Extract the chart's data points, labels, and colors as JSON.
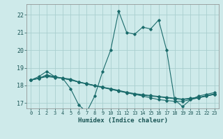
{
  "xlabel": "Humidex (Indice chaleur)",
  "ylabel": "",
  "bg_color": "#ceeaea",
  "grid_color": "#aacfcf",
  "line_color": "#1a6b6b",
  "xlim": [
    -0.5,
    23.5
  ],
  "ylim": [
    16.7,
    22.6
  ],
  "yticks": [
    17,
    18,
    19,
    20,
    21,
    22
  ],
  "xticks": [
    0,
    1,
    2,
    3,
    4,
    5,
    6,
    7,
    8,
    9,
    10,
    11,
    12,
    13,
    14,
    15,
    16,
    17,
    18,
    19,
    20,
    21,
    22,
    23
  ],
  "series": [
    {
      "x": [
        0,
        1,
        2,
        3,
        4,
        5,
        6,
        7,
        8,
        9,
        10,
        11,
        12,
        13,
        14,
        15,
        16,
        17,
        18,
        19,
        20,
        21,
        22,
        23
      ],
      "y": [
        18.3,
        18.5,
        18.8,
        18.5,
        18.4,
        17.8,
        16.9,
        16.5,
        17.4,
        18.8,
        20.0,
        22.2,
        21.0,
        20.9,
        21.3,
        21.2,
        21.7,
        20.0,
        17.2,
        16.8,
        17.2,
        17.4,
        17.5,
        17.6
      ]
    },
    {
      "x": [
        0,
        1,
        2,
        3,
        4,
        5,
        6,
        7,
        8,
        9,
        10,
        11,
        12,
        13,
        14,
        15,
        16,
        17,
        18,
        19,
        20,
        21,
        22,
        23
      ],
      "y": [
        18.3,
        18.4,
        18.6,
        18.5,
        18.4,
        18.3,
        18.2,
        18.1,
        18.0,
        17.9,
        17.8,
        17.7,
        17.6,
        17.5,
        17.4,
        17.3,
        17.2,
        17.15,
        17.1,
        17.1,
        17.2,
        17.3,
        17.4,
        17.5
      ]
    },
    {
      "x": [
        0,
        1,
        2,
        3,
        4,
        5,
        6,
        7,
        8,
        9,
        10,
        11,
        12,
        13,
        14,
        15,
        16,
        17,
        18,
        19,
        20,
        21,
        22,
        23
      ],
      "y": [
        18.3,
        18.4,
        18.5,
        18.45,
        18.4,
        18.32,
        18.18,
        18.08,
        17.98,
        17.88,
        17.78,
        17.68,
        17.58,
        17.5,
        17.45,
        17.4,
        17.35,
        17.3,
        17.25,
        17.2,
        17.25,
        17.3,
        17.4,
        17.5
      ]
    },
    {
      "x": [
        0,
        1,
        2,
        3,
        4,
        5,
        6,
        7,
        8,
        9,
        10,
        11,
        12,
        13,
        14,
        15,
        16,
        17,
        18,
        19,
        20,
        21,
        22,
        23
      ],
      "y": [
        18.3,
        18.42,
        18.55,
        18.47,
        18.42,
        18.36,
        18.2,
        18.1,
        18.0,
        17.9,
        17.82,
        17.72,
        17.62,
        17.54,
        17.48,
        17.43,
        17.38,
        17.33,
        17.28,
        17.23,
        17.28,
        17.33,
        17.43,
        17.53
      ]
    }
  ]
}
